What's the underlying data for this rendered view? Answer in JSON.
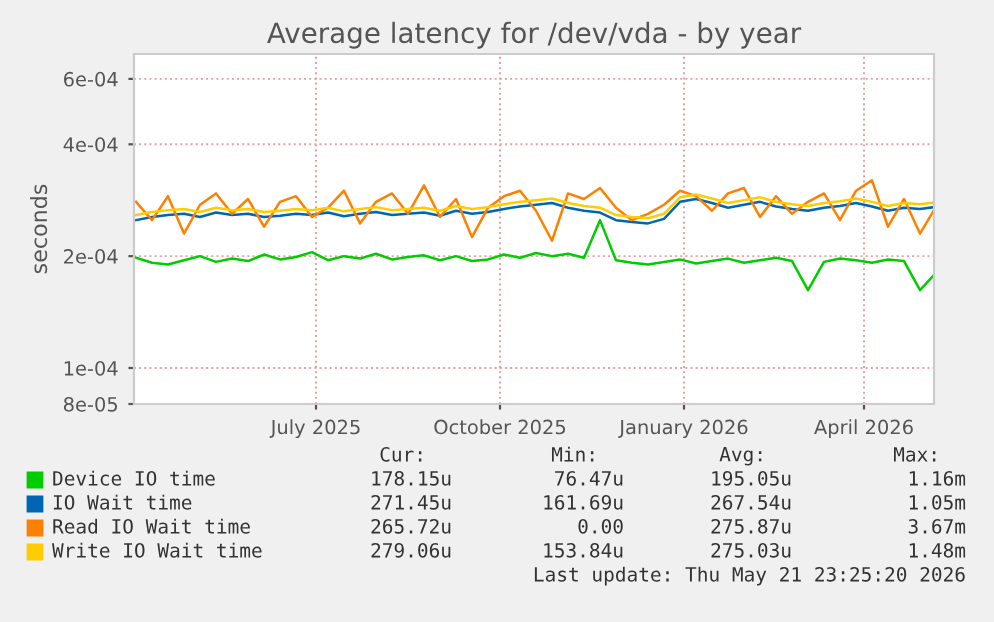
{
  "chart_data": {
    "type": "line",
    "title": "Average latency for /dev/vda - by year",
    "ylabel": "seconds",
    "log": "y",
    "x": [
      "2025-04-17",
      "2025-04-25",
      "2025-05-03",
      "2025-05-11",
      "2025-05-19",
      "2025-05-27",
      "2025-06-04",
      "2025-06-12",
      "2025-06-20",
      "2025-06-28",
      "2025-07-06",
      "2025-07-14",
      "2025-07-22",
      "2025-07-30",
      "2025-08-07",
      "2025-08-15",
      "2025-08-23",
      "2025-08-31",
      "2025-09-08",
      "2025-09-16",
      "2025-09-24",
      "2025-10-02",
      "2025-10-10",
      "2025-10-18",
      "2025-10-26",
      "2025-11-03",
      "2025-11-11",
      "2025-11-19",
      "2025-11-27",
      "2025-12-05",
      "2025-12-13",
      "2025-12-21",
      "2025-12-29",
      "2026-01-06",
      "2026-01-14",
      "2026-01-22",
      "2026-01-30",
      "2026-02-07",
      "2026-02-15",
      "2026-02-23",
      "2026-03-03",
      "2026-03-11",
      "2026-03-19",
      "2026-03-27",
      "2026-04-04",
      "2026-04-12",
      "2026-04-20",
      "2026-04-28",
      "2026-05-06",
      "2026-05-14",
      "2026-05-21"
    ],
    "series": [
      {
        "name": "Device IO time",
        "color": "#00cc00",
        "values": [
          0.000198,
          0.000192,
          0.00019,
          0.000195,
          0.0002,
          0.000193,
          0.000197,
          0.000194,
          0.000202,
          0.000196,
          0.000199,
          0.000205,
          0.000195,
          0.0002,
          0.000197,
          0.000203,
          0.000196,
          0.000199,
          0.000201,
          0.000195,
          0.0002,
          0.000194,
          0.000196,
          0.000202,
          0.000198,
          0.000204,
          0.0002,
          0.000203,
          0.000198,
          0.00025,
          0.000195,
          0.000192,
          0.00019,
          0.000193,
          0.000196,
          0.000191,
          0.000194,
          0.000197,
          0.000192,
          0.000195,
          0.000198,
          0.000194,
          0.000162,
          0.000193,
          0.000197,
          0.000195,
          0.000192,
          0.000196,
          0.000194,
          0.000162,
          0.000178
        ]
      },
      {
        "name": "IO Wait time",
        "color": "#0066b3",
        "values": [
          0.00025,
          0.000255,
          0.000258,
          0.00026,
          0.000255,
          0.000262,
          0.000258,
          0.00026,
          0.000255,
          0.000257,
          0.00026,
          0.000258,
          0.000262,
          0.000256,
          0.00026,
          0.000263,
          0.000258,
          0.00026,
          0.000262,
          0.000257,
          0.000265,
          0.00026,
          0.000263,
          0.000268,
          0.000272,
          0.000275,
          0.000278,
          0.00027,
          0.000265,
          0.000262,
          0.00025,
          0.000247,
          0.000245,
          0.000252,
          0.00028,
          0.000285,
          0.000278,
          0.00027,
          0.000275,
          0.00028,
          0.000272,
          0.000268,
          0.000265,
          0.00027,
          0.000273,
          0.000278,
          0.000272,
          0.000265,
          0.00027,
          0.000268,
          0.000271
        ]
      },
      {
        "name": "Read IO Wait time",
        "color": "#ff8000",
        "values": [
          0.00028,
          0.00025,
          0.00029,
          0.00023,
          0.000275,
          0.000295,
          0.00026,
          0.000285,
          0.00024,
          0.00028,
          0.00029,
          0.000255,
          0.00027,
          0.0003,
          0.000245,
          0.00028,
          0.000295,
          0.00026,
          0.00031,
          0.000255,
          0.000285,
          0.000225,
          0.00027,
          0.00029,
          0.0003,
          0.000265,
          0.00022,
          0.000295,
          0.000285,
          0.000305,
          0.00027,
          0.00025,
          0.00026,
          0.000275,
          0.0003,
          0.00029,
          0.000265,
          0.000295,
          0.000305,
          0.000255,
          0.00029,
          0.00026,
          0.00028,
          0.000295,
          0.00025,
          0.0003,
          0.00032,
          0.00024,
          0.000285,
          0.00023,
          0.000266
        ]
      },
      {
        "name": "Write IO Wait time",
        "color": "#ffcc00",
        "values": [
          0.000258,
          0.000263,
          0.000266,
          0.000268,
          0.000263,
          0.00027,
          0.000266,
          0.000268,
          0.000263,
          0.000265,
          0.000268,
          0.000266,
          0.00027,
          0.000264,
          0.000268,
          0.000271,
          0.000266,
          0.000268,
          0.00027,
          0.000265,
          0.000273,
          0.000268,
          0.000271,
          0.000276,
          0.00028,
          0.000283,
          0.000286,
          0.000278,
          0.000273,
          0.00027,
          0.000258,
          0.000255,
          0.000253,
          0.00026,
          0.000288,
          0.000293,
          0.000286,
          0.000278,
          0.000283,
          0.000288,
          0.00028,
          0.000276,
          0.000273,
          0.000278,
          0.000281,
          0.000286,
          0.00028,
          0.000273,
          0.000278,
          0.000276,
          0.000279
        ]
      }
    ],
    "xlim": [
      "2025-04-16",
      "2026-05-21"
    ],
    "xticks": [
      {
        "value": "2025-07-16",
        "label": "July 2025"
      },
      {
        "value": "2025-10-16",
        "label": "October 2025"
      },
      {
        "value": "2026-01-16",
        "label": "January 2026"
      },
      {
        "value": "2026-04-16",
        "label": "April 2026"
      }
    ],
    "ylim": [
      8e-05,
      0.0007
    ],
    "yticks": [
      {
        "value": 8e-05,
        "label": "8e-05"
      },
      {
        "value": 0.0001,
        "label": "1e-04"
      },
      {
        "value": 0.0002,
        "label": "2e-04"
      },
      {
        "value": 0.0004,
        "label": "4e-04"
      },
      {
        "value": 0.0006,
        "label": "6e-04"
      }
    ],
    "grid": true,
    "legend": "bottom",
    "marker": "none",
    "line_style": "solid",
    "annotations": [
      "Cur:",
      "Min:",
      "Avg:",
      "Max:",
      "178.15u",
      "76.47u",
      "195.05u",
      "1.16m",
      "271.45u",
      "161.69u",
      "267.54u",
      "1.05m",
      "265.72u",
      "0.00",
      "275.87u",
      "3.67m",
      "279.06u",
      "153.84u",
      "275.03u",
      "1.48m",
      "Last update: Thu May 21 23:25:20 2026"
    ]
  }
}
